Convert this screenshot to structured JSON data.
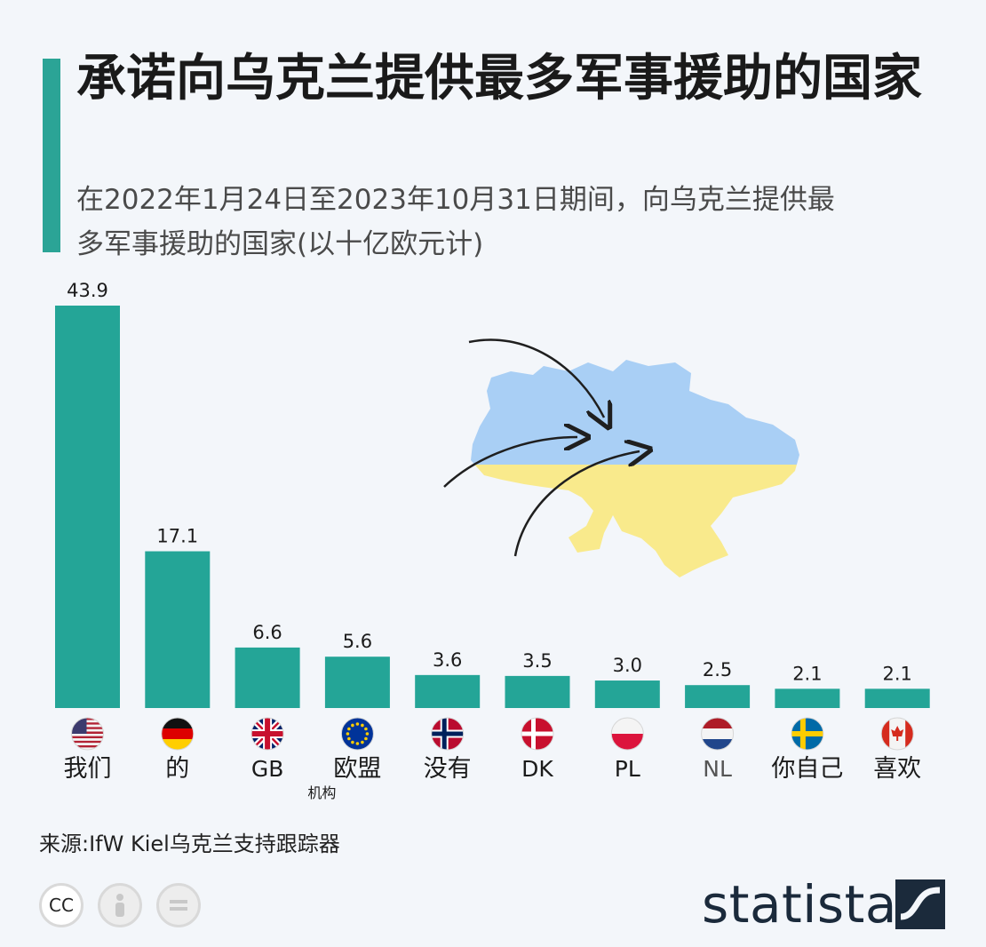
{
  "title": "承诺向乌克兰提供最多军事援助的国家",
  "subtitle": "在2022年1月24日至2023年10月31日期间，向乌克兰提供最多军事援助的国家(以十亿欧元计)",
  "source": "来源:IfW Kiel乌克兰支持跟踪器",
  "license": {
    "cc": "CC"
  },
  "brand": {
    "name": "statista"
  },
  "colors": {
    "bar": "#24a597",
    "accent": "#2ba496",
    "map_blue": "#a9cff5",
    "map_yellow": "#f9ea8c",
    "brand": "#1b2a3b"
  },
  "chart_data": {
    "type": "bar",
    "title": "承诺向乌克兰提供最多军事援助的国家",
    "ylabel": "",
    "categories": [
      "我们",
      "的",
      "GB",
      "欧盟",
      "没有",
      "DK",
      "PL",
      "NL",
      "你自己",
      "喜欢"
    ],
    "category_notes": [
      "",
      "",
      "",
      "机构",
      "",
      "",
      "",
      "",
      "",
      ""
    ],
    "flags": [
      "us-flag",
      "de-flag",
      "gb-flag",
      "eu-flag",
      "no-flag",
      "dk-flag",
      "pl-flag",
      "nl-flag",
      "se-flag",
      "ca-flag"
    ],
    "values": [
      43.9,
      17.1,
      6.6,
      5.6,
      3.6,
      3.5,
      3.0,
      2.5,
      2.1,
      2.1
    ],
    "value_labels": [
      "43.9",
      "17.1",
      "6.6",
      "5.6",
      "3.6",
      "3.5",
      "3.0",
      "2.5",
      "2.1",
      "2.1"
    ],
    "ylim": [
      0,
      43.9
    ],
    "grid": false,
    "legend": "none"
  }
}
